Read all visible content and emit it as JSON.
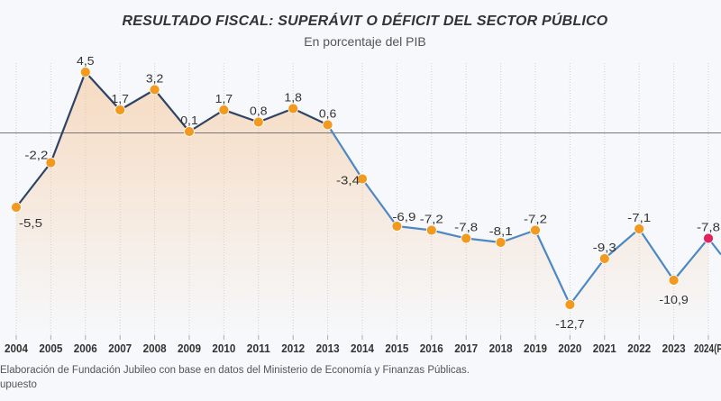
{
  "chart_data": {
    "type": "line",
    "title": "RESULTADO FISCAL: SUPERÁVIT O DÉFICIT DEL SECTOR PÚBLICO",
    "subtitle": "En porcentaje del PIB",
    "categories": [
      "2004",
      "2005",
      "2006",
      "2007",
      "2008",
      "2009",
      "2010",
      "2011",
      "2012",
      "2013",
      "2014",
      "2015",
      "2016",
      "2017",
      "2018",
      "2019",
      "2020",
      "2021",
      "2022",
      "2023",
      "2024(P"
    ],
    "values": [
      -5.5,
      -2.2,
      4.5,
      1.7,
      3.2,
      0.1,
      1.7,
      0.8,
      1.8,
      0.6,
      -3.4,
      -6.9,
      -7.2,
      -7.8,
      -8.1,
      -7.2,
      -12.7,
      -9.3,
      -7.1,
      -10.9,
      -7.8
    ],
    "data_labels": [
      "-5,5",
      "-2,2",
      "4,5",
      "1,7",
      "3,2",
      "0,1",
      "1,7",
      "0,8",
      "1,8",
      "0,6",
      "-3,4",
      "-6,9",
      "-7,2",
      "-7,8",
      "-8,1",
      "-7,2",
      "-12,7",
      "-9,3",
      "-7,1",
      "-10,9",
      "-7,8"
    ],
    "reference_line": 0,
    "ylim": [
      -15,
      5
    ],
    "grid": "vertical dashed",
    "colors": {
      "line_early": "#2f4366",
      "line_late": "#4d88c4",
      "marker": "#f29a1f",
      "marker_highlight": "#e0245e",
      "fill": "#f5b77a",
      "zero_line": "#777777"
    }
  },
  "footer": {
    "source": "Elaboración de Fundación Jubileo con base en datos del Ministerio de Economía y Finanzas Públicas.",
    "note": "upuesto"
  }
}
